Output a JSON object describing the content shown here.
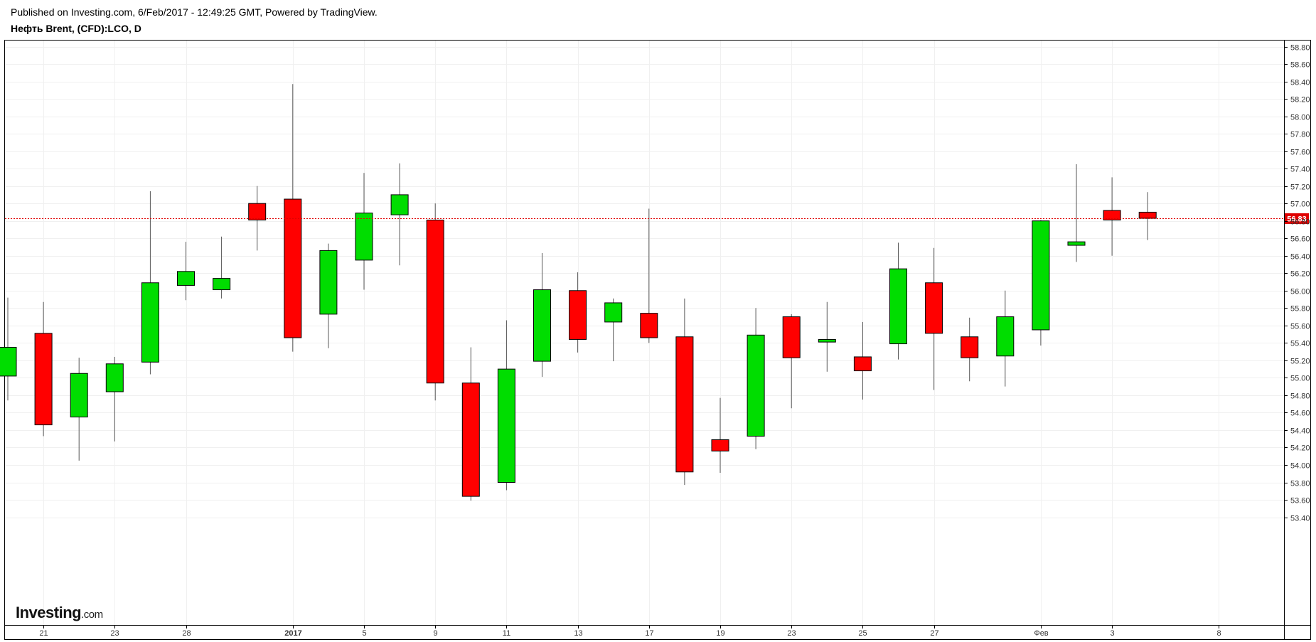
{
  "header": {
    "published": "Published on Investing.com, 6/Feb/2017 - 12:49:25 GMT, Powered by TradingView.",
    "instrument": "Нефть Brent, (CFD):LCO, D"
  },
  "logo": {
    "brand": "Investing",
    "suffix": ".com"
  },
  "chart_data": {
    "type": "candlestick",
    "title": "Нефть Brent, (CFD):LCO, D",
    "ylim": [
      53.3,
      58.9
    ],
    "y_ticks": [
      "53.40",
      "53.60",
      "53.80",
      "54.00",
      "54.20",
      "54.40",
      "54.60",
      "54.80",
      "55.00",
      "55.20",
      "55.40",
      "55.60",
      "55.80",
      "56.00",
      "56.20",
      "56.40",
      "56.60",
      "56.80",
      "57.00",
      "57.20",
      "57.40",
      "57.60",
      "57.80",
      "58.00",
      "58.20",
      "58.40",
      "58.60",
      "58.80"
    ],
    "x_ticks": [
      {
        "label": "21",
        "slot": 1,
        "bold": false
      },
      {
        "label": "23",
        "slot": 3,
        "bold": false
      },
      {
        "label": "28",
        "slot": 5,
        "bold": false
      },
      {
        "label": "2017",
        "slot": 8,
        "bold": true
      },
      {
        "label": "5",
        "slot": 10,
        "bold": false
      },
      {
        "label": "9",
        "slot": 12,
        "bold": false
      },
      {
        "label": "11",
        "slot": 14,
        "bold": false
      },
      {
        "label": "13",
        "slot": 16,
        "bold": false
      },
      {
        "label": "17",
        "slot": 18,
        "bold": false
      },
      {
        "label": "19",
        "slot": 20,
        "bold": false
      },
      {
        "label": "23",
        "slot": 22,
        "bold": false
      },
      {
        "label": "25",
        "slot": 24,
        "bold": false
      },
      {
        "label": "27",
        "slot": 26,
        "bold": false
      },
      {
        "label": "Фев",
        "slot": 29,
        "bold": false
      },
      {
        "label": "3",
        "slot": 31,
        "bold": false
      },
      {
        "label": "8",
        "slot": 34,
        "bold": false
      }
    ],
    "last_price": 56.83,
    "last_price_label": "56.83",
    "colors": {
      "up": "#00dd00",
      "down": "#ff0000",
      "wick": "#555555",
      "grid": "#f0f0f0",
      "price_line": "#e00000"
    },
    "candles": [
      {
        "open": 55.02,
        "high": 55.92,
        "low": 54.74,
        "close": 55.35
      },
      {
        "open": 55.51,
        "high": 55.87,
        "low": 54.33,
        "close": 54.46
      },
      {
        "open": 54.55,
        "high": 55.23,
        "low": 54.05,
        "close": 55.05
      },
      {
        "open": 54.84,
        "high": 55.24,
        "low": 54.27,
        "close": 55.16
      },
      {
        "open": 55.18,
        "high": 57.14,
        "low": 55.04,
        "close": 56.09
      },
      {
        "open": 56.06,
        "high": 56.56,
        "low": 55.89,
        "close": 56.22
      },
      {
        "open": 56.01,
        "high": 56.62,
        "low": 55.91,
        "close": 56.14
      },
      {
        "open": 57.0,
        "high": 57.2,
        "low": 56.46,
        "close": 56.81
      },
      {
        "open": 57.05,
        "high": 58.37,
        "low": 55.3,
        "close": 55.46
      },
      {
        "open": 55.73,
        "high": 56.54,
        "low": 55.34,
        "close": 56.46
      },
      {
        "open": 56.35,
        "high": 57.35,
        "low": 56.01,
        "close": 56.89
      },
      {
        "open": 56.87,
        "high": 57.46,
        "low": 56.29,
        "close": 57.1
      },
      {
        "open": 56.81,
        "high": 57.0,
        "low": 54.74,
        "close": 54.94
      },
      {
        "open": 54.94,
        "high": 55.35,
        "low": 53.59,
        "close": 53.64
      },
      {
        "open": 53.8,
        "high": 55.66,
        "low": 53.71,
        "close": 55.1
      },
      {
        "open": 55.19,
        "high": 56.43,
        "low": 55.01,
        "close": 56.01
      },
      {
        "open": 56.0,
        "high": 56.21,
        "low": 55.29,
        "close": 55.44
      },
      {
        "open": 55.64,
        "high": 55.91,
        "low": 55.19,
        "close": 55.86
      },
      {
        "open": 55.74,
        "high": 56.94,
        "low": 55.4,
        "close": 55.46
      },
      {
        "open": 55.47,
        "high": 55.91,
        "low": 53.77,
        "close": 53.92
      },
      {
        "open": 54.29,
        "high": 54.77,
        "low": 53.91,
        "close": 54.16
      },
      {
        "open": 54.33,
        "high": 55.8,
        "low": 54.18,
        "close": 55.49
      },
      {
        "open": 55.7,
        "high": 55.73,
        "low": 54.65,
        "close": 55.23
      },
      {
        "open": 55.41,
        "high": 55.87,
        "low": 55.07,
        "close": 55.44
      },
      {
        "open": 55.24,
        "high": 55.64,
        "low": 54.75,
        "close": 55.08
      },
      {
        "open": 55.39,
        "high": 56.55,
        "low": 55.21,
        "close": 56.25
      },
      {
        "open": 56.09,
        "high": 56.49,
        "low": 54.86,
        "close": 55.51
      },
      {
        "open": 55.47,
        "high": 55.69,
        "low": 54.96,
        "close": 55.23
      },
      {
        "open": 55.25,
        "high": 56.0,
        "low": 54.9,
        "close": 55.7
      },
      {
        "open": 55.55,
        "high": 56.81,
        "low": 55.37,
        "close": 56.8
      },
      {
        "open": 56.52,
        "high": 57.45,
        "low": 56.33,
        "close": 56.56
      },
      {
        "open": 56.92,
        "high": 57.3,
        "low": 56.4,
        "close": 56.81
      },
      {
        "open": 56.9,
        "high": 57.13,
        "low": 56.58,
        "close": 56.83
      }
    ]
  }
}
